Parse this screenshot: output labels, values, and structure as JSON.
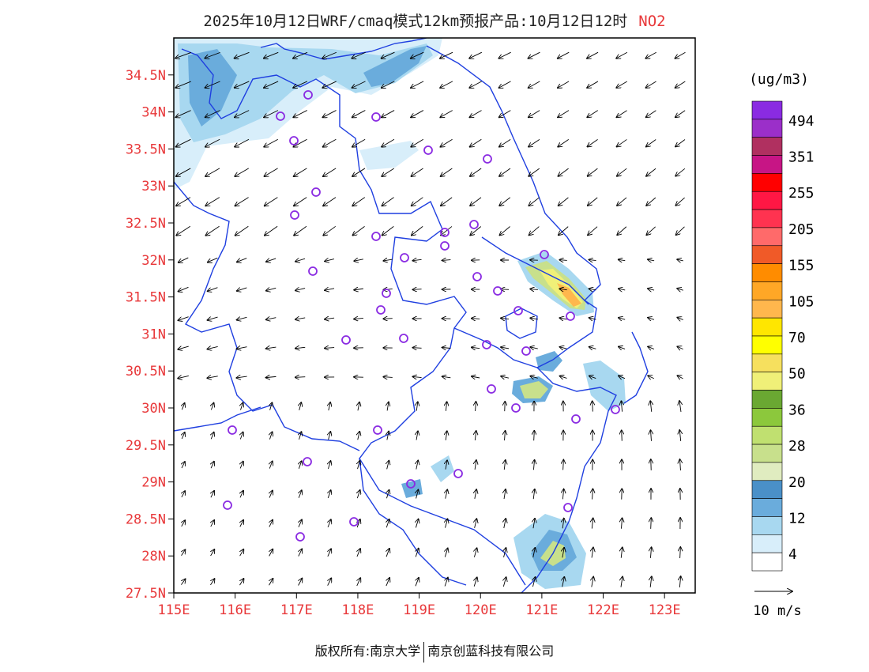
{
  "title": {
    "main": "2025年10月12日WRF/cmaq模式12km预报产品:10月12日12时",
    "pollutant": "NO2"
  },
  "footer": {
    "left": "版权所有:南京大学",
    "right": "南京创蓝科技有限公司"
  },
  "map": {
    "lat_labels": [
      "34.5N",
      "34N",
      "33.5N",
      "33N",
      "32.5N",
      "32N",
      "31.5N",
      "31N",
      "30.5N",
      "30N",
      "29.5N",
      "29N",
      "28.5N",
      "28N",
      "27.5N"
    ],
    "lat_values": [
      34.5,
      34,
      33.5,
      33,
      32.5,
      32,
      31.5,
      31,
      30.5,
      30,
      29.5,
      29,
      28.5,
      28,
      27.5
    ],
    "lon_labels": [
      "115E",
      "116E",
      "117E",
      "118E",
      "119E",
      "120E",
      "121E",
      "122E",
      "123E"
    ],
    "lon_values": [
      115,
      116,
      117,
      118,
      119,
      120,
      121,
      122,
      123
    ],
    "lat_range": [
      27.5,
      35.0
    ],
    "lon_range": [
      115.0,
      123.5
    ],
    "wind_field": "north-easterly winds over the north, weak southerly/south-westerly winds over the south",
    "boundary_color": "#1f3fe0",
    "station_marker_color": "#8a2be2"
  },
  "legend": {
    "unit": "(ug/m3)",
    "labels": [
      "494",
      "351",
      "255",
      "205",
      "155",
      "105",
      "70",
      "50",
      "36",
      "28",
      "20",
      "12",
      "4"
    ],
    "colors": [
      "#8a2be2",
      "#9b2fc9",
      "#b03060",
      "#c71585",
      "#ff0000",
      "#ff1744",
      "#ff3350",
      "#ff6a6a",
      "#f05a28",
      "#ff8c00",
      "#ffa726",
      "#ffb74d",
      "#ffe600",
      "#ffff00",
      "#f6e05e",
      "#f0f078",
      "#6aa832",
      "#8cc83c",
      "#c0e070",
      "#c8e08c",
      "#e0ecc0",
      "#4a90c8",
      "#6aacdc",
      "#a8d8f0",
      "#d8eefa",
      "#ffffff"
    ]
  },
  "wind_scale": {
    "label": "10 m/s"
  }
}
